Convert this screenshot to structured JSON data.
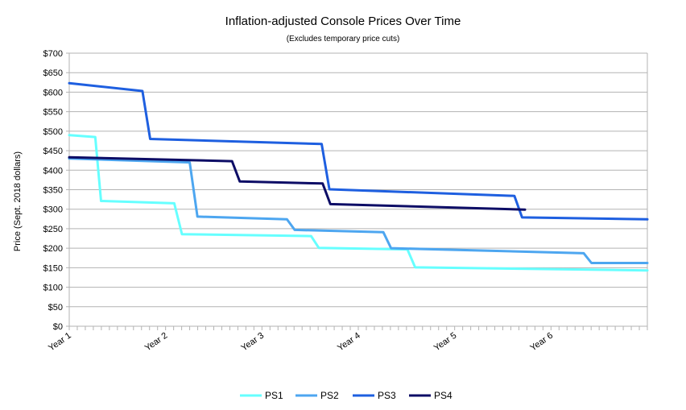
{
  "chart_data": {
    "type": "line",
    "title": "Inflation-adjusted Console Prices Over Time",
    "subtitle": "(Excludes temporary price cuts)",
    "xlabel": "",
    "ylabel": "Price (Sept. 2018 dollars)",
    "ylim": [
      0,
      700
    ],
    "xlim": [
      0,
      6.0
    ],
    "y_ticks": [
      0,
      50,
      100,
      150,
      200,
      250,
      300,
      350,
      400,
      450,
      500,
      550,
      600,
      650,
      700
    ],
    "y_tick_labels": [
      "$0",
      "$50",
      "$100",
      "$150",
      "$200",
      "$250",
      "$300",
      "$350",
      "$400",
      "$450",
      "$500",
      "$550",
      "$600",
      "$650",
      "$700"
    ],
    "x_ticks": [
      0,
      1,
      2,
      3,
      4,
      5
    ],
    "x_tick_labels": [
      "Year 1",
      "Year 2",
      "Year 3",
      "Year 4",
      "Year 5",
      "Year 6"
    ],
    "grid": true,
    "legend_position": "bottom",
    "series": [
      {
        "name": "PS1",
        "color": "#66ffff",
        "x": [
          0,
          0.27,
          0.33,
          1.09,
          1.17,
          2.51,
          2.59,
          3.51,
          3.59,
          6.0
        ],
        "y": [
          490,
          485,
          321,
          315,
          236,
          231,
          201,
          197,
          151,
          143
        ]
      },
      {
        "name": "PS2",
        "color": "#4da6f0",
        "x": [
          0,
          1.25,
          1.33,
          2.26,
          2.34,
          3.26,
          3.34,
          5.34,
          5.42,
          6.0
        ],
        "y": [
          430,
          420,
          281,
          274,
          247,
          241,
          200,
          187,
          162,
          162
        ]
      },
      {
        "name": "PS3",
        "color": "#1e5fe0",
        "x": [
          0,
          0.76,
          0.84,
          2.62,
          2.7,
          4.62,
          4.7,
          6.0
        ],
        "y": [
          623,
          603,
          480,
          467,
          351,
          334,
          279,
          274
        ]
      },
      {
        "name": "PS4",
        "color": "#0d0d66",
        "x": [
          0,
          1.69,
          1.77,
          2.63,
          2.71,
          4.73
        ],
        "y": [
          433,
          423,
          371,
          366,
          313,
          299
        ]
      }
    ]
  }
}
